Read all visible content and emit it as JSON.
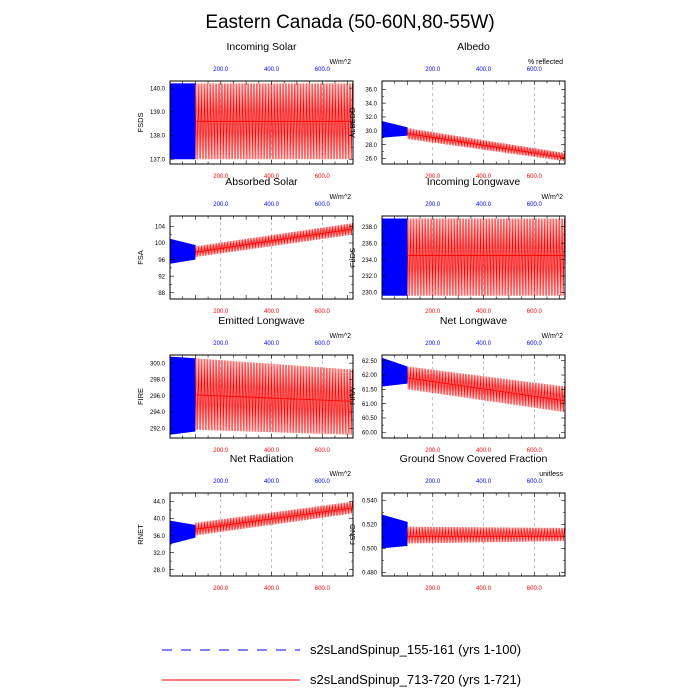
{
  "title": "Eastern Canada (50-60N,80-55W)",
  "colors": {
    "blue": "#0000ff",
    "red": "#ff0000",
    "grid": "#999999",
    "axis": "#000000"
  },
  "legend": [
    {
      "label": "s2sLandSpinup_155-161 (yrs 1-100)",
      "color": "#0000ff",
      "style": "dashed"
    },
    {
      "label": "s2sLandSpinup_713-720 (yrs 1-721)",
      "color": "#ff0000",
      "style": "solid"
    }
  ],
  "chart_data": [
    {
      "type": "line",
      "title": "Incoming Solar",
      "ylabel": "FSDS",
      "units": "W/m^2",
      "xlim": [
        0,
        721
      ],
      "ylim": [
        136.8,
        140.3
      ],
      "xticks": [
        200,
        400,
        600
      ],
      "yticks": [
        137,
        138,
        139,
        140
      ],
      "ytick_labels": [
        "137.0",
        "138.0",
        "139.0",
        "140.0"
      ],
      "vlines": [
        200,
        400,
        600
      ],
      "series": [
        {
          "name": "s2sLandSpinup_155-161 (yrs 1-100)",
          "x_range": [
            1,
            100
          ],
          "mean_start": 138.6,
          "mean_end": 138.6,
          "low_start": 137.0,
          "low_end": 137.0,
          "high_start": 140.2,
          "high_end": 140.2
        },
        {
          "name": "s2sLandSpinup_713-720 (yrs 1-721)",
          "x_range": [
            100,
            721
          ],
          "mean_start": 138.6,
          "mean_end": 138.6,
          "low_start": 137.0,
          "low_end": 137.0,
          "high_start": 140.2,
          "high_end": 140.2
        }
      ]
    },
    {
      "type": "line",
      "title": "Albedo",
      "ylabel": "ALBEDO",
      "units": "% reflected",
      "xlim": [
        0,
        721
      ],
      "ylim": [
        25.2,
        37.2
      ],
      "xticks": [
        200,
        400,
        600
      ],
      "yticks": [
        26,
        28,
        30,
        32,
        34,
        36
      ],
      "ytick_labels": [
        "26.0",
        "28.0",
        "30.0",
        "32.0",
        "34.0",
        "36.0"
      ],
      "vlines": [
        200,
        400,
        600
      ],
      "series": [
        {
          "name": "s2sLandSpinup_155-161 (yrs 1-100)",
          "x_range": [
            1,
            100
          ],
          "mean_start": 30.0,
          "mean_end": 30.0,
          "low_start": 29.0,
          "low_end": 29.3,
          "high_start": 31.4,
          "high_end": 30.5
        },
        {
          "name": "s2sLandSpinup_713-720 (yrs 1-721)",
          "x_range": [
            100,
            721
          ],
          "mean_start": 29.6,
          "mean_end": 26.1,
          "low_start": 28.8,
          "low_end": 25.6,
          "high_start": 30.4,
          "high_end": 26.8
        }
      ]
    },
    {
      "type": "line",
      "title": "Absorbed Solar",
      "ylabel": "FSA",
      "units": "W/m^2",
      "xlim": [
        0,
        721
      ],
      "ylim": [
        86.5,
        106.5
      ],
      "xticks": [
        200,
        400,
        600
      ],
      "yticks": [
        88,
        92,
        96,
        100,
        104
      ],
      "ytick_labels": [
        "88",
        "92",
        "96",
        "100",
        "104"
      ],
      "vlines": [
        200,
        400,
        600
      ],
      "series": [
        {
          "name": "s2sLandSpinup_155-161 (yrs 1-100)",
          "x_range": [
            1,
            100
          ],
          "mean_start": 97.5,
          "mean_end": 97.6,
          "low_start": 95.0,
          "low_end": 96.0,
          "high_start": 101.0,
          "high_end": 99.5
        },
        {
          "name": "s2sLandSpinup_713-720 (yrs 1-721)",
          "x_range": [
            100,
            721
          ],
          "mean_start": 97.8,
          "mean_end": 103.4,
          "low_start": 96.6,
          "low_end": 102.0,
          "high_start": 99.2,
          "high_end": 104.8
        }
      ]
    },
    {
      "type": "line",
      "title": "Incoming Longwave",
      "ylabel": "FLDS",
      "units": "W/m^2",
      "xlim": [
        0,
        721
      ],
      "ylim": [
        229.2,
        239.3
      ],
      "xticks": [
        200,
        400,
        600
      ],
      "yticks": [
        230,
        232,
        234,
        236,
        238
      ],
      "ytick_labels": [
        "230.0",
        "232.0",
        "234.0",
        "236.0",
        "238.0"
      ],
      "vlines": [
        200,
        400,
        600
      ],
      "series": [
        {
          "name": "s2sLandSpinup_155-161 (yrs 1-100)",
          "x_range": [
            1,
            100
          ],
          "mean_start": 234.5,
          "mean_end": 234.5,
          "low_start": 229.6,
          "low_end": 229.6,
          "high_start": 239.0,
          "high_end": 239.0
        },
        {
          "name": "s2sLandSpinup_713-720 (yrs 1-721)",
          "x_range": [
            100,
            721
          ],
          "mean_start": 234.5,
          "mean_end": 234.5,
          "low_start": 229.6,
          "low_end": 229.6,
          "high_start": 239.0,
          "high_end": 239.0
        }
      ]
    },
    {
      "type": "line",
      "title": "Emitted Longwave",
      "ylabel": "FIRE",
      "units": "W/m^2",
      "xlim": [
        0,
        721
      ],
      "ylim": [
        290.8,
        301.0
      ],
      "xticks": [
        200,
        400,
        600
      ],
      "yticks": [
        292,
        294,
        296,
        298,
        300
      ],
      "ytick_labels": [
        "292.0",
        "294.0",
        "296.0",
        "298.0",
        "300.0"
      ],
      "vlines": [
        200,
        400,
        600
      ],
      "series": [
        {
          "name": "s2sLandSpinup_155-161 (yrs 1-100)",
          "x_range": [
            1,
            100
          ],
          "mean_start": 296.5,
          "mean_end": 296.2,
          "low_start": 291.2,
          "low_end": 291.6,
          "high_start": 300.8,
          "high_end": 300.6
        },
        {
          "name": "s2sLandSpinup_713-720 (yrs 1-721)",
          "x_range": [
            100,
            721
          ],
          "mean_start": 296.1,
          "mean_end": 295.3,
          "low_start": 291.8,
          "low_end": 291.2,
          "high_start": 300.6,
          "high_end": 299.2
        }
      ]
    },
    {
      "type": "line",
      "title": "Net Longwave",
      "ylabel": "FIRA",
      "units": "W/m^2",
      "xlim": [
        0,
        721
      ],
      "ylim": [
        59.8,
        62.7
      ],
      "xticks": [
        200,
        400,
        600
      ],
      "yticks": [
        60.0,
        60.5,
        61.0,
        61.5,
        62.0,
        62.5
      ],
      "ytick_labels": [
        "60.00",
        "60.50",
        "61.00",
        "61.50",
        "62.00",
        "62.50"
      ],
      "vlines": [
        200,
        400,
        600
      ],
      "series": [
        {
          "name": "s2sLandSpinup_155-161 (yrs 1-100)",
          "x_range": [
            1,
            100
          ],
          "mean_start": 62.0,
          "mean_end": 62.0,
          "low_start": 61.6,
          "low_end": 61.7,
          "high_start": 62.6,
          "high_end": 62.3
        },
        {
          "name": "s2sLandSpinup_713-720 (yrs 1-721)",
          "x_range": [
            100,
            721
          ],
          "mean_start": 61.9,
          "mean_end": 61.1,
          "low_start": 61.5,
          "low_end": 60.7,
          "high_start": 62.3,
          "high_end": 61.6
        }
      ]
    },
    {
      "type": "line",
      "title": "Net Radiation",
      "ylabel": "RNET",
      "units": "W/m^2",
      "xlim": [
        0,
        721
      ],
      "ylim": [
        26.5,
        46.0
      ],
      "xticks": [
        200,
        400,
        600
      ],
      "yticks": [
        28,
        32,
        36,
        40,
        44
      ],
      "ytick_labels": [
        "28.0",
        "32.0",
        "36.0",
        "40.0",
        "44.0"
      ],
      "vlines": [
        200,
        400,
        600
      ],
      "series": [
        {
          "name": "s2sLandSpinup_155-161 (yrs 1-100)",
          "x_range": [
            1,
            100
          ],
          "mean_start": 36.5,
          "mean_end": 37.0,
          "low_start": 34.0,
          "low_end": 35.5,
          "high_start": 39.5,
          "high_end": 38.5
        },
        {
          "name": "s2sLandSpinup_713-720 (yrs 1-721)",
          "x_range": [
            100,
            721
          ],
          "mean_start": 37.5,
          "mean_end": 42.5,
          "low_start": 36.0,
          "low_end": 41.2,
          "high_start": 39.0,
          "high_end": 44.0
        }
      ]
    },
    {
      "type": "line",
      "title": "Ground Snow Covered Fraction",
      "ylabel": "FSNO",
      "units": "unitless",
      "xlim": [
        0,
        721
      ],
      "ylim": [
        0.477,
        0.546
      ],
      "xticks": [
        200,
        400,
        600
      ],
      "yticks": [
        0.48,
        0.5,
        0.52,
        0.54
      ],
      "ytick_labels": [
        "0.480",
        "0.500",
        "0.520",
        "0.540"
      ],
      "vlines": [
        200,
        400,
        600
      ],
      "series": [
        {
          "name": "s2sLandSpinup_155-161 (yrs 1-100)",
          "x_range": [
            1,
            100
          ],
          "mean_start": 0.512,
          "mean_end": 0.511,
          "low_start": 0.5,
          "low_end": 0.502,
          "high_start": 0.528,
          "high_end": 0.522
        },
        {
          "name": "s2sLandSpinup_713-720 (yrs 1-721)",
          "x_range": [
            100,
            721
          ],
          "mean_start": 0.51,
          "mean_end": 0.51,
          "low_start": 0.504,
          "low_end": 0.506,
          "high_start": 0.518,
          "high_end": 0.517
        }
      ]
    }
  ]
}
